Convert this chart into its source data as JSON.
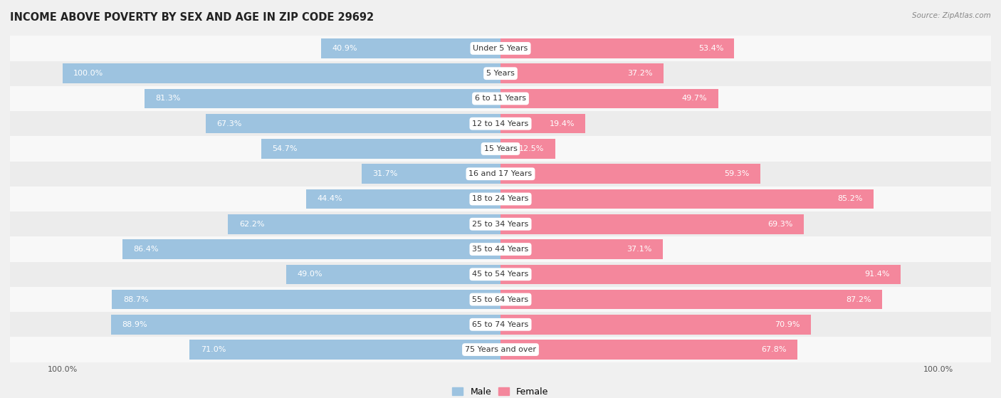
{
  "title": "INCOME ABOVE POVERTY BY SEX AND AGE IN ZIP CODE 29692",
  "source": "Source: ZipAtlas.com",
  "categories": [
    "Under 5 Years",
    "5 Years",
    "6 to 11 Years",
    "12 to 14 Years",
    "15 Years",
    "16 and 17 Years",
    "18 to 24 Years",
    "25 to 34 Years",
    "35 to 44 Years",
    "45 to 54 Years",
    "55 to 64 Years",
    "65 to 74 Years",
    "75 Years and over"
  ],
  "male_values": [
    40.9,
    100.0,
    81.3,
    67.3,
    54.7,
    31.7,
    44.4,
    62.2,
    86.4,
    49.0,
    88.7,
    88.9,
    71.0
  ],
  "female_values": [
    53.4,
    37.2,
    49.7,
    19.4,
    12.5,
    59.3,
    85.2,
    69.3,
    37.1,
    91.4,
    87.2,
    70.9,
    67.8
  ],
  "male_color": "#9dc3e0",
  "female_color": "#f4879c",
  "male_label_color_inside": "#ffffff",
  "male_label_color_outside": "#666666",
  "female_label_color_inside": "#ffffff",
  "female_label_color_outside": "#666666",
  "background_color": "#f0f0f0",
  "row_bg_color_light": "#f8f8f8",
  "row_bg_color_dark": "#ececec",
  "title_fontsize": 10.5,
  "label_fontsize": 8,
  "cat_label_fontsize": 8,
  "axis_label_fontsize": 8,
  "legend_fontsize": 9,
  "max_val": 100.0,
  "bar_height": 0.78,
  "inside_threshold": 12
}
